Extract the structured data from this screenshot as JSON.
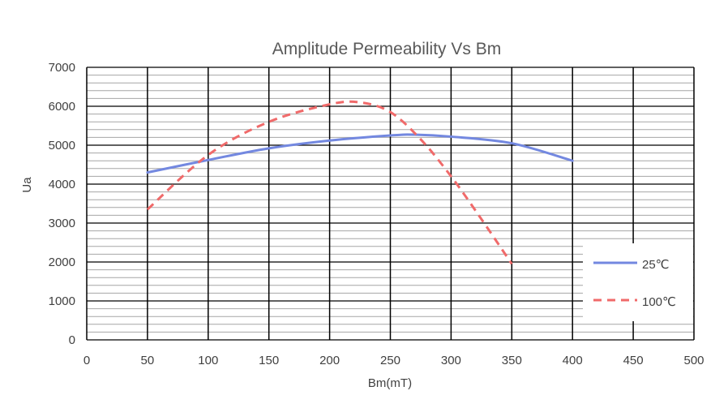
{
  "chart_data": {
    "type": "line",
    "title": "Amplitude Permeability Vs Bm",
    "xlabel": "Bm(mT)",
    "ylabel": "Ua",
    "xlim": [
      0,
      500
    ],
    "ylim": [
      0,
      7000
    ],
    "x_ticks": [
      "0",
      "50",
      "100",
      "150",
      "200",
      "250",
      "300",
      "350",
      "400",
      "450",
      "500"
    ],
    "y_ticks": [
      "0",
      "1000",
      "2000",
      "3000",
      "4000",
      "5000",
      "6000",
      "7000"
    ],
    "grid": {
      "major_x": true,
      "major_y": true,
      "minor_y": true,
      "minor_y_step": 200
    },
    "legend_position": "right",
    "series": [
      {
        "name": "25℃",
        "color": "#7388e0",
        "dash": "solid",
        "x": [
          50,
          100,
          150,
          200,
          250,
          270,
          300,
          350,
          400
        ],
        "y": [
          4300,
          4620,
          4920,
          5120,
          5250,
          5270,
          5220,
          5050,
          4600
        ]
      },
      {
        "name": "100℃",
        "color": "#f06a6a",
        "dash": "dashed",
        "x": [
          50,
          100,
          150,
          200,
          225,
          250,
          275,
          300,
          325,
          350
        ],
        "y": [
          3350,
          4750,
          5600,
          6050,
          6100,
          5850,
          5150,
          4200,
          3100,
          1950
        ]
      }
    ]
  }
}
